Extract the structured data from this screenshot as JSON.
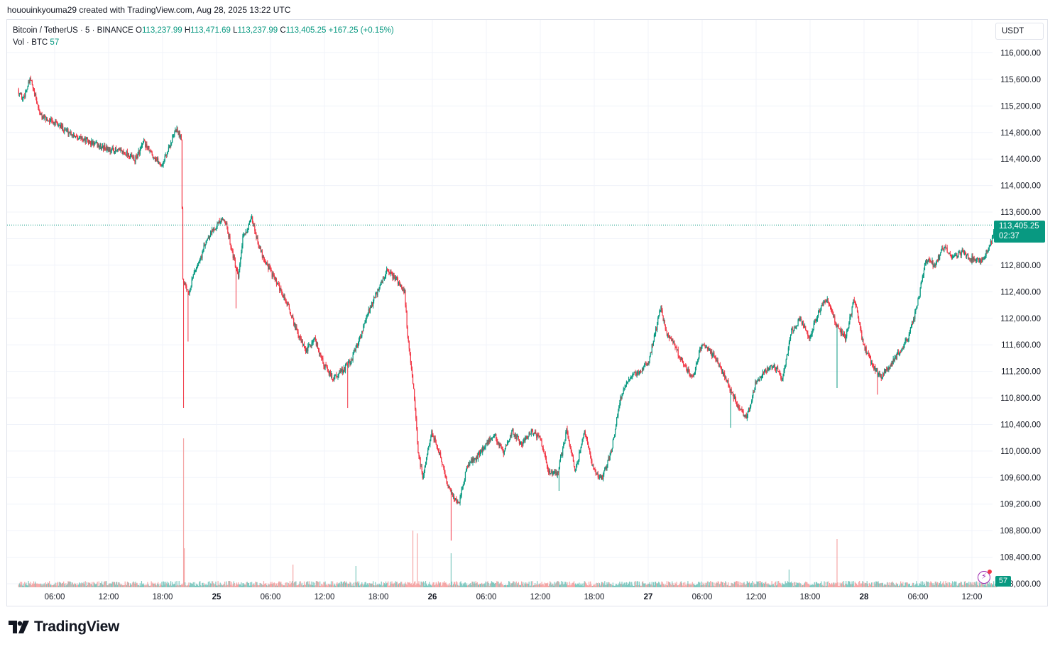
{
  "header": {
    "attribution": "hououinkyouma29 created with TradingView.com, Aug 28, 2025 13:22 UTC"
  },
  "legend": {
    "symbol": "Bitcoin / TetherUS · 5 · BINANCE",
    "o_label": "O",
    "o_value": "113,237.99",
    "h_label": "H",
    "h_value": "113,471.69",
    "l_label": "L",
    "l_value": "113,237.99",
    "c_label": "C",
    "c_value": "113,405.25",
    "change": "+167.25 (+0.15%)",
    "vol_label": "Vol · BTC",
    "vol_value": "57"
  },
  "currency": "USDT",
  "price_tag": {
    "price": "113,405.25",
    "countdown": "02:37"
  },
  "volume_tag": "57",
  "brand": "TradingView",
  "colors": {
    "up": "#089981",
    "down": "#f23645",
    "vol_up": "#7ec8bf",
    "vol_down": "#f5a6a6",
    "grid": "#f0f3fa"
  },
  "chart_data": {
    "type": "candlestick",
    "symbol": "Bitcoin / TetherUS",
    "interval": "5",
    "exchange": "BINANCE",
    "y_axis": {
      "ticks": [
        "116,000.00",
        "115,600.00",
        "115,200.00",
        "114,800.00",
        "114,400.00",
        "114,000.00",
        "113,600.00",
        "113,200.00",
        "112,800.00",
        "112,400.00",
        "112,000.00",
        "111,600.00",
        "111,200.00",
        "110,800.00",
        "110,400.00",
        "110,000.00",
        "109,600.00",
        "109,200.00",
        "108,800.00",
        "108,400.00",
        "108,000.00"
      ],
      "ylim": [
        108000,
        116000
      ]
    },
    "x_axis": {
      "ticks": [
        "06:00",
        "12:00",
        "18:00",
        "25",
        "06:00",
        "12:00",
        "18:00",
        "26",
        "06:00",
        "12:00",
        "18:00",
        "27",
        "06:00",
        "12:00",
        "18:00",
        "28",
        "06:00",
        "12:00"
      ]
    },
    "last_price": 113405.25,
    "anchors": [
      {
        "t": 0,
        "p": 115450
      },
      {
        "t": 0.5,
        "p": 115300
      },
      {
        "t": 1.4,
        "p": 115600
      },
      {
        "t": 2.5,
        "p": 115050
      },
      {
        "t": 4,
        "p": 114950
      },
      {
        "t": 6,
        "p": 114780
      },
      {
        "t": 8,
        "p": 114650
      },
      {
        "t": 10,
        "p": 114550
      },
      {
        "t": 12,
        "p": 114500
      },
      {
        "t": 13,
        "p": 114380
      },
      {
        "t": 14,
        "p": 114650
      },
      {
        "t": 15,
        "p": 114450
      },
      {
        "t": 16,
        "p": 114300
      },
      {
        "t": 17.6,
        "p": 114850
      },
      {
        "t": 18.2,
        "p": 114720
      },
      {
        "t": 18.3,
        "p": 112600
      },
      {
        "t": 19,
        "p": 112400
      },
      {
        "t": 19.6,
        "p": 112700
      },
      {
        "t": 20.3,
        "p": 112900
      },
      {
        "t": 21,
        "p": 113200
      },
      {
        "t": 22,
        "p": 113400
      },
      {
        "t": 23,
        "p": 113500
      },
      {
        "t": 24,
        "p": 112900
      },
      {
        "t": 24.5,
        "p": 112600
      },
      {
        "t": 25,
        "p": 113200
      },
      {
        "t": 26,
        "p": 113500
      },
      {
        "t": 27,
        "p": 113000
      },
      {
        "t": 28.5,
        "p": 112600
      },
      {
        "t": 30,
        "p": 112200
      },
      {
        "t": 31,
        "p": 111800
      },
      {
        "t": 32,
        "p": 111500
      },
      {
        "t": 33,
        "p": 111700
      },
      {
        "t": 34,
        "p": 111300
      },
      {
        "t": 35,
        "p": 111100
      },
      {
        "t": 36,
        "p": 111200
      },
      {
        "t": 37,
        "p": 111350
      },
      {
        "t": 38,
        "p": 111700
      },
      {
        "t": 39,
        "p": 112100
      },
      {
        "t": 40,
        "p": 112400
      },
      {
        "t": 41,
        "p": 112700
      },
      {
        "t": 42,
        "p": 112600
      },
      {
        "t": 43,
        "p": 112400
      },
      {
        "t": 43.3,
        "p": 111800
      },
      {
        "t": 44,
        "p": 110900
      },
      {
        "t": 44.5,
        "p": 110000
      },
      {
        "t": 45,
        "p": 109600
      },
      {
        "t": 46,
        "p": 110300
      },
      {
        "t": 47,
        "p": 109900
      },
      {
        "t": 48,
        "p": 109400
      },
      {
        "t": 49,
        "p": 109200
      },
      {
        "t": 50,
        "p": 109800
      },
      {
        "t": 51,
        "p": 109900
      },
      {
        "t": 52,
        "p": 110100
      },
      {
        "t": 53,
        "p": 110250
      },
      {
        "t": 54,
        "p": 109950
      },
      {
        "t": 55,
        "p": 110300
      },
      {
        "t": 56,
        "p": 110100
      },
      {
        "t": 57,
        "p": 110300
      },
      {
        "t": 58,
        "p": 110200
      },
      {
        "t": 59,
        "p": 109700
      },
      {
        "t": 60,
        "p": 109650
      },
      {
        "t": 61,
        "p": 110300
      },
      {
        "t": 62,
        "p": 109700
      },
      {
        "t": 63,
        "p": 110300
      },
      {
        "t": 64,
        "p": 109700
      },
      {
        "t": 65,
        "p": 109600
      },
      {
        "t": 66,
        "p": 110000
      },
      {
        "t": 67,
        "p": 110800
      },
      {
        "t": 68,
        "p": 111100
      },
      {
        "t": 69,
        "p": 111200
      },
      {
        "t": 70,
        "p": 111300
      },
      {
        "t": 71,
        "p": 111850
      },
      {
        "t": 71.5,
        "p": 112200
      },
      {
        "t": 72,
        "p": 111800
      },
      {
        "t": 73,
        "p": 111600
      },
      {
        "t": 74,
        "p": 111300
      },
      {
        "t": 75,
        "p": 111100
      },
      {
        "t": 76,
        "p": 111600
      },
      {
        "t": 77,
        "p": 111500
      },
      {
        "t": 78,
        "p": 111300
      },
      {
        "t": 79,
        "p": 111000
      },
      {
        "t": 80,
        "p": 110700
      },
      {
        "t": 81,
        "p": 110500
      },
      {
        "t": 82,
        "p": 111000
      },
      {
        "t": 83,
        "p": 111200
      },
      {
        "t": 84,
        "p": 111300
      },
      {
        "t": 85,
        "p": 111100
      },
      {
        "t": 86,
        "p": 111800
      },
      {
        "t": 87,
        "p": 112000
      },
      {
        "t": 88,
        "p": 111700
      },
      {
        "t": 89,
        "p": 112100
      },
      {
        "t": 90,
        "p": 112300
      },
      {
        "t": 91,
        "p": 111900
      },
      {
        "t": 92,
        "p": 111700
      },
      {
        "t": 93,
        "p": 112300
      },
      {
        "t": 94,
        "p": 111600
      },
      {
        "t": 95,
        "p": 111300
      },
      {
        "t": 96,
        "p": 111100
      },
      {
        "t": 97,
        "p": 111300
      },
      {
        "t": 98,
        "p": 111500
      },
      {
        "t": 99,
        "p": 111700
      },
      {
        "t": 100,
        "p": 112200
      },
      {
        "t": 101,
        "p": 112900
      },
      {
        "t": 102,
        "p": 112800
      },
      {
        "t": 103,
        "p": 113100
      },
      {
        "t": 104,
        "p": 112900
      },
      {
        "t": 105,
        "p": 113000
      },
      {
        "t": 106,
        "p": 112900
      },
      {
        "t": 107,
        "p": 112850
      },
      {
        "t": 108,
        "p": 113050
      },
      {
        "t": 108.8,
        "p": 113405
      }
    ],
    "spikes": [
      {
        "t": 18.3,
        "low": 110650
      },
      {
        "t": 18.8,
        "low": 111650
      },
      {
        "t": 24.2,
        "low": 112150
      },
      {
        "t": 36.6,
        "low": 110650
      },
      {
        "t": 48.1,
        "low": 108650
      },
      {
        "t": 60.1,
        "low": 109400
      },
      {
        "t": 79.2,
        "low": 110350
      },
      {
        "t": 91.0,
        "low": 110950
      },
      {
        "t": 95.5,
        "low": 110850
      }
    ],
    "volume_spikes": [
      {
        "t": 18.3,
        "v": 210,
        "dir": "down"
      },
      {
        "t": 18.4,
        "v": 55,
        "dir": "down"
      },
      {
        "t": 43.8,
        "v": 80,
        "dir": "down"
      },
      {
        "t": 44.3,
        "v": 76,
        "dir": "down"
      },
      {
        "t": 48.1,
        "v": 48,
        "dir": "up"
      },
      {
        "t": 91.0,
        "v": 68,
        "dir": "down"
      },
      {
        "t": 30.5,
        "v": 32,
        "dir": "down"
      },
      {
        "t": 37.5,
        "v": 30,
        "dir": "up"
      },
      {
        "t": 85.7,
        "v": 25,
        "dir": "up"
      }
    ]
  }
}
